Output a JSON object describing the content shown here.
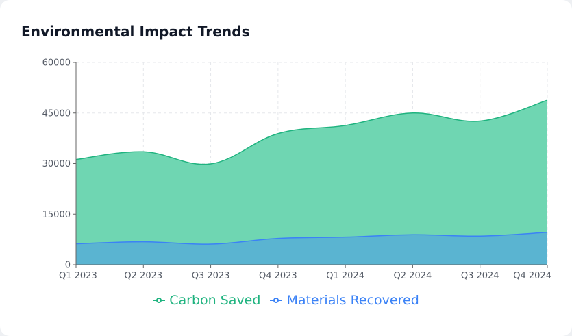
{
  "card": {
    "title": "Environmental Impact Trends"
  },
  "colors": {
    "carbon_line": "#1fb37f",
    "carbon_fill": "#6fd6b2",
    "materials_line": "#3b82f6",
    "materials_fill": "#5ab4d1",
    "grid": "#e5e7eb",
    "axis": "#666666"
  },
  "chart_data": {
    "type": "area",
    "title": "Environmental Impact Trends",
    "xlabel": "",
    "ylabel": "",
    "categories": [
      "Q1 2023",
      "Q2 2023",
      "Q3 2023",
      "Q4 2023",
      "Q1 2024",
      "Q2 2024",
      "Q3 2024",
      "Q4 2024"
    ],
    "ylim": [
      0,
      60000
    ],
    "yticks": [
      0,
      15000,
      30000,
      45000,
      60000
    ],
    "grid": true,
    "legend": "bottom-center",
    "series": [
      {
        "name": "Carbon Saved",
        "values": [
          31200,
          33500,
          29900,
          38900,
          41300,
          45000,
          42600,
          48800
        ]
      },
      {
        "name": "Materials Recovered",
        "values": [
          6200,
          6800,
          6100,
          7800,
          8200,
          8900,
          8500,
          9600
        ]
      }
    ]
  }
}
